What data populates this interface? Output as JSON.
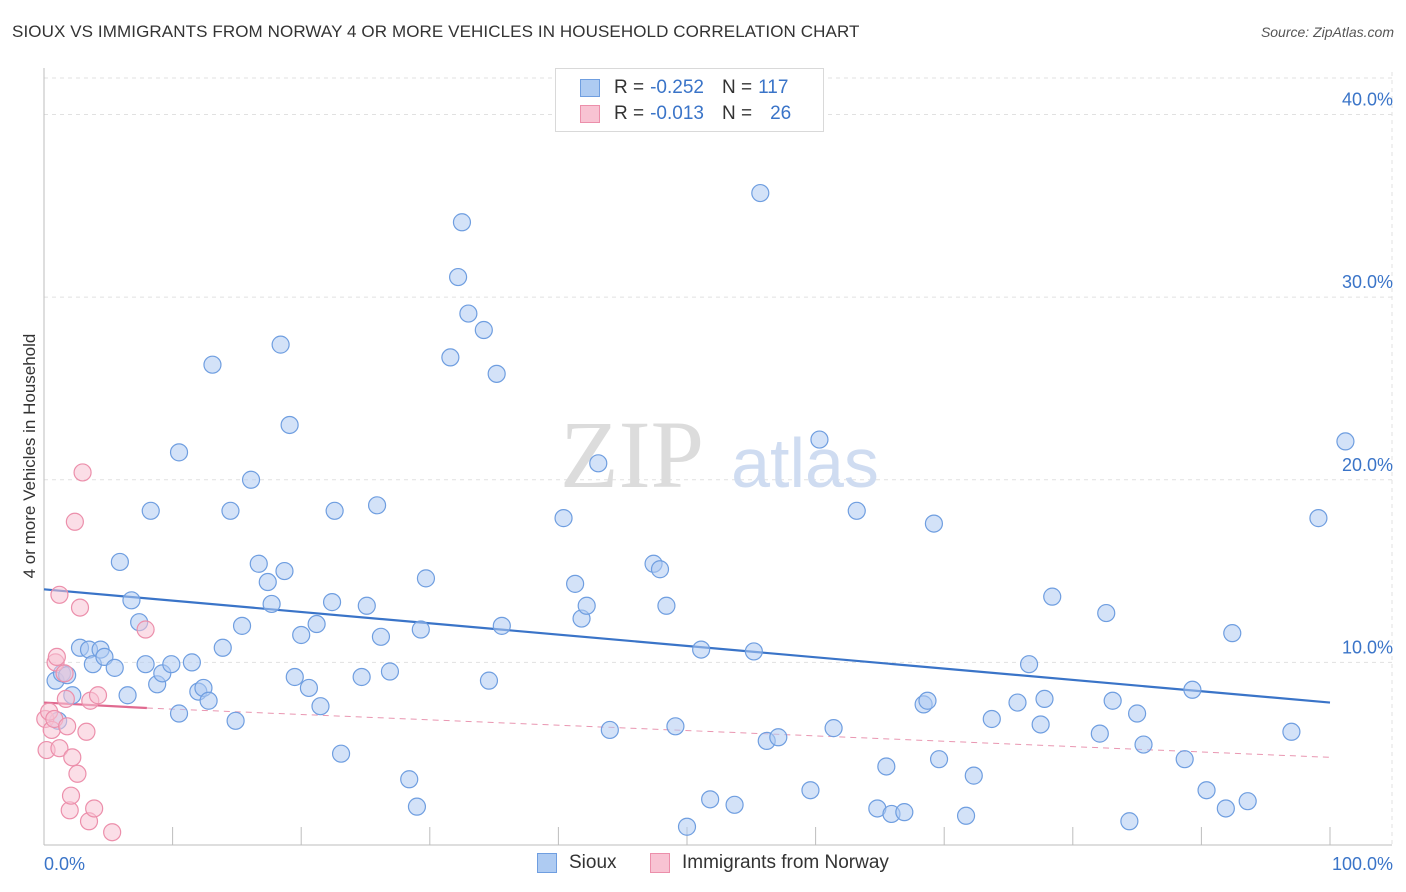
{
  "header": {
    "title": "SIOUX VS IMMIGRANTS FROM NORWAY 4 OR MORE VEHICLES IN HOUSEHOLD CORRELATION CHART",
    "source": "Source: ZipAtlas.com"
  },
  "watermark": {
    "zip": "ZIP",
    "atlas": "atlas"
  },
  "legend": {
    "rows": [
      {
        "r_label": "R =",
        "r_value": "-0.252",
        "n_label": "N =",
        "n_value": "117",
        "color": "#aecbf2",
        "border": "#6f9ee0"
      },
      {
        "r_label": "R =",
        "r_value": "-0.013",
        "n_label": "N =",
        "n_value": "26",
        "color": "#f8c3d3",
        "border": "#ec8fab"
      }
    ]
  },
  "bottom_legend": [
    {
      "label": "Sioux",
      "color": "#aecbf2",
      "border": "#6f9ee0"
    },
    {
      "label": "Immigrants from Norway",
      "color": "#f8c3d3",
      "border": "#ec8fab"
    }
  ],
  "chart_data": {
    "type": "scatter",
    "title": "SIOUX VS IMMIGRANTS FROM NORWAY 4 OR MORE VEHICLES IN HOUSEHOLD CORRELATION CHART",
    "xlabel": "",
    "ylabel": "4 or more Vehicles in Household",
    "xlim": [
      0,
      100
    ],
    "ylim": [
      0,
      42
    ],
    "x_tick_labels": [
      "0.0%",
      "100.0%"
    ],
    "y_ticks": [
      10,
      20,
      30,
      40
    ],
    "y_tick_labels": [
      "10.0%",
      "20.0%",
      "30.0%",
      "40.0%"
    ],
    "grid": true,
    "series": [
      {
        "name": "Sioux",
        "color": "#aecbf2",
        "stroke": "#6f9ee0",
        "trend": {
          "x": [
            0,
            100
          ],
          "y": [
            14.0,
            7.8
          ],
          "color": "#3a74c8",
          "style": "solid"
        },
        "points": [
          [
            0.9,
            9.0
          ],
          [
            1.1,
            6.8
          ],
          [
            1.4,
            9.4
          ],
          [
            1.8,
            9.3
          ],
          [
            2.2,
            8.2
          ],
          [
            2.8,
            10.8
          ],
          [
            3.5,
            10.7
          ],
          [
            3.8,
            9.9
          ],
          [
            4.4,
            10.7
          ],
          [
            4.7,
            10.3
          ],
          [
            5.5,
            9.7
          ],
          [
            5.9,
            15.5
          ],
          [
            6.5,
            8.2
          ],
          [
            6.8,
            13.4
          ],
          [
            7.4,
            12.2
          ],
          [
            7.9,
            9.9
          ],
          [
            8.3,
            18.3
          ],
          [
            8.8,
            8.8
          ],
          [
            9.2,
            9.4
          ],
          [
            9.9,
            9.9
          ],
          [
            10.5,
            21.5
          ],
          [
            10.5,
            7.2
          ],
          [
            11.5,
            10.0
          ],
          [
            12.0,
            8.4
          ],
          [
            12.4,
            8.6
          ],
          [
            12.8,
            7.9
          ],
          [
            13.1,
            26.3
          ],
          [
            13.9,
            10.8
          ],
          [
            14.5,
            18.3
          ],
          [
            14.9,
            6.8
          ],
          [
            15.4,
            12.0
          ],
          [
            16.1,
            20.0
          ],
          [
            16.7,
            15.4
          ],
          [
            17.4,
            14.4
          ],
          [
            17.7,
            13.2
          ],
          [
            18.4,
            27.4
          ],
          [
            18.7,
            15.0
          ],
          [
            19.1,
            23.0
          ],
          [
            19.5,
            9.2
          ],
          [
            20.0,
            11.5
          ],
          [
            20.6,
            8.6
          ],
          [
            21.2,
            12.1
          ],
          [
            21.5,
            7.6
          ],
          [
            22.4,
            13.3
          ],
          [
            22.6,
            18.3
          ],
          [
            23.1,
            5.0
          ],
          [
            24.7,
            9.2
          ],
          [
            25.1,
            13.1
          ],
          [
            25.9,
            18.6
          ],
          [
            26.2,
            11.4
          ],
          [
            26.9,
            9.5
          ],
          [
            28.4,
            3.6
          ],
          [
            29.0,
            2.1
          ],
          [
            29.3,
            11.8
          ],
          [
            29.7,
            14.6
          ],
          [
            31.6,
            26.7
          ],
          [
            32.2,
            31.1
          ],
          [
            32.5,
            34.1
          ],
          [
            33.0,
            29.1
          ],
          [
            34.2,
            28.2
          ],
          [
            34.6,
            9.0
          ],
          [
            35.2,
            25.8
          ],
          [
            35.6,
            12.0
          ],
          [
            40.4,
            17.9
          ],
          [
            41.3,
            14.3
          ],
          [
            41.8,
            12.4
          ],
          [
            42.2,
            13.1
          ],
          [
            43.1,
            20.9
          ],
          [
            44.0,
            6.3
          ],
          [
            47.4,
            15.4
          ],
          [
            47.9,
            15.1
          ],
          [
            48.4,
            13.1
          ],
          [
            49.1,
            6.5
          ],
          [
            50.0,
            1.0
          ],
          [
            51.1,
            10.7
          ],
          [
            51.8,
            2.5
          ],
          [
            53.7,
            2.2
          ],
          [
            55.2,
            10.6
          ],
          [
            55.7,
            35.7
          ],
          [
            56.2,
            5.7
          ],
          [
            57.1,
            5.9
          ],
          [
            59.6,
            3.0
          ],
          [
            60.3,
            22.2
          ],
          [
            61.4,
            6.4
          ],
          [
            63.2,
            18.3
          ],
          [
            64.8,
            2.0
          ],
          [
            65.5,
            4.3
          ],
          [
            65.9,
            1.7
          ],
          [
            66.9,
            1.8
          ],
          [
            68.4,
            7.7
          ],
          [
            68.7,
            7.9
          ],
          [
            69.2,
            17.6
          ],
          [
            69.6,
            4.7
          ],
          [
            71.7,
            1.6
          ],
          [
            72.3,
            3.8
          ],
          [
            73.7,
            6.9
          ],
          [
            75.7,
            7.8
          ],
          [
            76.6,
            9.9
          ],
          [
            77.5,
            6.6
          ],
          [
            77.8,
            8.0
          ],
          [
            78.4,
            13.6
          ],
          [
            82.1,
            6.1
          ],
          [
            82.6,
            12.7
          ],
          [
            83.1,
            7.9
          ],
          [
            84.4,
            1.3
          ],
          [
            85.0,
            7.2
          ],
          [
            85.5,
            5.5
          ],
          [
            88.7,
            4.7
          ],
          [
            89.3,
            8.5
          ],
          [
            90.4,
            3.0
          ],
          [
            91.9,
            2.0
          ],
          [
            92.4,
            11.6
          ],
          [
            93.6,
            2.4
          ],
          [
            97.0,
            6.2
          ],
          [
            99.1,
            17.9
          ],
          [
            101.2,
            22.1
          ]
        ]
      },
      {
        "name": "Immigrants from Norway",
        "color": "#f8c3d3",
        "stroke": "#ec8fab",
        "trend": {
          "x": [
            0,
            8
          ],
          "y": [
            7.8,
            7.5
          ],
          "color": "#e06a90",
          "style": "solid",
          "extended": {
            "x": [
              8,
              100
            ],
            "y": [
              7.5,
              4.8
            ],
            "style": "dashed"
          }
        },
        "points": [
          [
            0.1,
            6.9
          ],
          [
            0.2,
            5.2
          ],
          [
            0.4,
            7.3
          ],
          [
            0.6,
            6.3
          ],
          [
            0.8,
            6.9
          ],
          [
            0.9,
            10.0
          ],
          [
            1.0,
            10.3
          ],
          [
            1.2,
            5.3
          ],
          [
            1.2,
            13.7
          ],
          [
            1.6,
            9.4
          ],
          [
            1.7,
            8.0
          ],
          [
            1.8,
            6.5
          ],
          [
            2.0,
            1.9
          ],
          [
            2.1,
            2.7
          ],
          [
            2.2,
            4.8
          ],
          [
            2.4,
            17.7
          ],
          [
            2.6,
            3.9
          ],
          [
            2.8,
            13.0
          ],
          [
            3.0,
            20.4
          ],
          [
            3.3,
            6.2
          ],
          [
            3.5,
            1.3
          ],
          [
            3.6,
            7.9
          ],
          [
            3.9,
            2.0
          ],
          [
            4.2,
            8.2
          ],
          [
            5.3,
            0.7
          ],
          [
            7.9,
            11.8
          ]
        ]
      }
    ]
  }
}
